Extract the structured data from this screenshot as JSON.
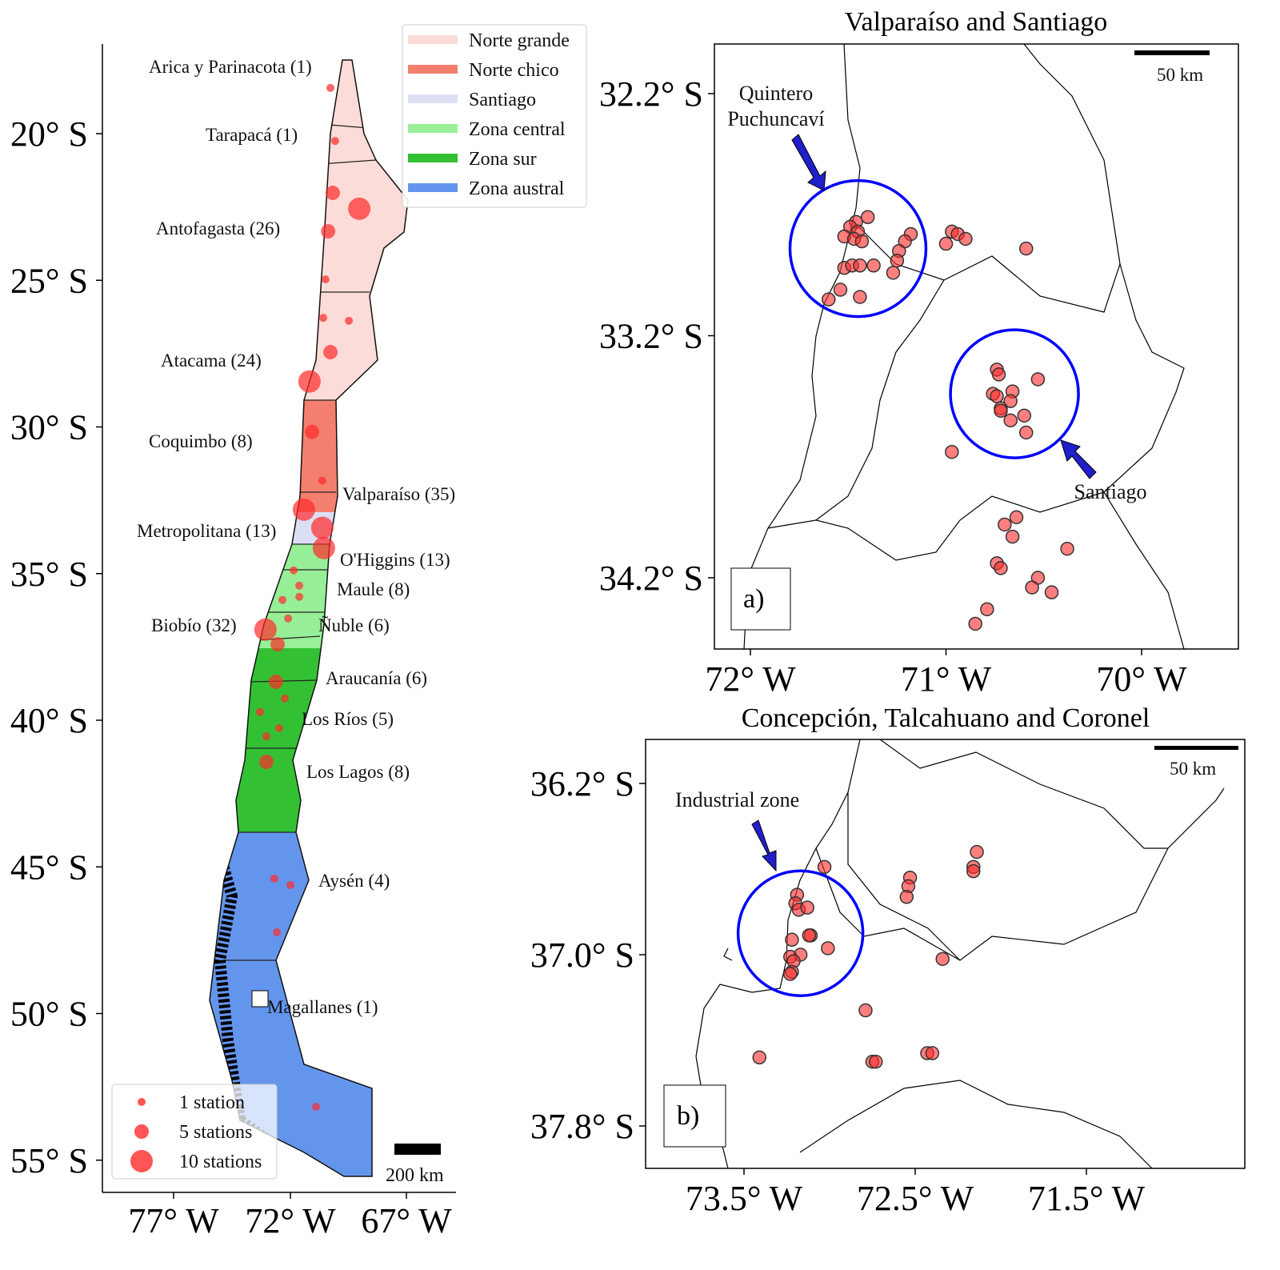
{
  "main_map": {
    "lat_ticks": [
      "20° S",
      "25° S",
      "30° S",
      "35° S",
      "40° S",
      "45° S",
      "50° S",
      "55° S"
    ],
    "lon_ticks": [
      "77° W",
      "72° W",
      "67° W"
    ],
    "scale_bar": "200 km",
    "regions": [
      "Arica y Parinacota (1)",
      "Tarapacá (1)",
      "Antofagasta (26)",
      "Atacama (24)",
      "Coquimbo (8)",
      "Valparaíso (35)",
      "Metropolitana (13)",
      "O'Higgins (13)",
      "Maule (8)",
      "Biobío (32)",
      "Ñuble (6)",
      "Araucanía (6)",
      "Los Ríos (5)",
      "Los Lagos (8)",
      "Aysén (4)",
      "Magallanes (1)"
    ],
    "zone_legend": [
      {
        "label": "Norte grande",
        "color": "#fcdcd8"
      },
      {
        "label": "Norte chico",
        "color": "#f3806e"
      },
      {
        "label": "Santiago",
        "color": "#dcdff4"
      },
      {
        "label": "Zona central",
        "color": "#97f097"
      },
      {
        "label": "Zona sur",
        "color": "#33c133"
      },
      {
        "label": "Zona austral",
        "color": "#6495ed"
      }
    ],
    "size_legend": [
      {
        "label": "1 station",
        "stations": 1
      },
      {
        "label": "5 stations",
        "stations": 5
      },
      {
        "label": "10 stations",
        "stations": 10
      }
    ],
    "stations": [
      {
        "lat": 18.44,
        "lon": 70.28,
        "n": 1
      },
      {
        "lat": 20.25,
        "lon": 70.08,
        "n": 1
      },
      {
        "lat": 22.02,
        "lon": 70.18,
        "n": 5
      },
      {
        "lat": 22.56,
        "lon": 69.04,
        "n": 10
      },
      {
        "lat": 23.33,
        "lon": 70.38,
        "n": 5
      },
      {
        "lat": 24.97,
        "lon": 70.49,
        "n": 1
      },
      {
        "lat": 26.28,
        "lon": 70.59,
        "n": 1
      },
      {
        "lat": 26.38,
        "lon": 69.49,
        "n": 1
      },
      {
        "lat": 27.45,
        "lon": 70.28,
        "n": 5
      },
      {
        "lat": 28.45,
        "lon": 71.18,
        "n": 10
      },
      {
        "lat": 30.17,
        "lon": 71.07,
        "n": 5
      },
      {
        "lat": 31.83,
        "lon": 70.63,
        "n": 1
      },
      {
        "lat": 32.82,
        "lon": 71.42,
        "n": 10
      },
      {
        "lat": 33.44,
        "lon": 70.63,
        "n": 10
      },
      {
        "lat": 34.13,
        "lon": 70.56,
        "n": 10
      },
      {
        "lat": 34.89,
        "lon": 71.86,
        "n": 1
      },
      {
        "lat": 35.41,
        "lon": 71.62,
        "n": 1
      },
      {
        "lat": 35.79,
        "lon": 71.62,
        "n": 1
      },
      {
        "lat": 35.9,
        "lon": 72.34,
        "n": 1
      },
      {
        "lat": 36.53,
        "lon": 72.1,
        "n": 1
      },
      {
        "lat": 36.91,
        "lon": 73.07,
        "n": 10
      },
      {
        "lat": 37.41,
        "lon": 72.55,
        "n": 5
      },
      {
        "lat": 38.69,
        "lon": 72.62,
        "n": 5
      },
      {
        "lat": 39.26,
        "lon": 72.24,
        "n": 1
      },
      {
        "lat": 39.72,
        "lon": 73.31,
        "n": 1
      },
      {
        "lat": 40.27,
        "lon": 72.48,
        "n": 1
      },
      {
        "lat": 40.55,
        "lon": 73.03,
        "n": 1
      },
      {
        "lat": 41.42,
        "lon": 73.03,
        "n": 5
      },
      {
        "lat": 45.4,
        "lon": 72.69,
        "n": 1
      },
      {
        "lat": 45.62,
        "lon": 72.0,
        "n": 1
      },
      {
        "lat": 47.23,
        "lon": 72.58,
        "n": 1
      },
      {
        "lat": 53.18,
        "lon": 70.9,
        "n": 1
      }
    ]
  },
  "inset_a": {
    "title": "Valparaíso and Santiago",
    "panel_label": "a)",
    "lat_ticks": [
      "32.2° S",
      "33.2° S",
      "34.2° S"
    ],
    "lon_ticks": [
      "72° W",
      "71° W",
      "70° W"
    ],
    "scale_bar": "50 km",
    "annotations": [
      "Quintero",
      "Puchuncaví",
      "Santiago"
    ],
    "highlight_circles": [
      {
        "lat": 32.84,
        "lon": 71.45
      },
      {
        "lat": 33.44,
        "lon": 70.65
      }
    ],
    "highlight_color": "#0000ff",
    "stations": [
      [
        32.71,
        71.4
      ],
      [
        32.73,
        71.46
      ],
      [
        32.75,
        71.49
      ],
      [
        32.77,
        71.45
      ],
      [
        32.79,
        71.52
      ],
      [
        32.8,
        71.47
      ],
      [
        32.81,
        71.43
      ],
      [
        32.78,
        71.18
      ],
      [
        32.81,
        71.21
      ],
      [
        32.85,
        71.24
      ],
      [
        32.89,
        71.25
      ],
      [
        32.77,
        70.97
      ],
      [
        32.78,
        70.94
      ],
      [
        32.8,
        70.9
      ],
      [
        32.82,
        71.0
      ],
      [
        32.84,
        70.59
      ],
      [
        32.92,
        71.52
      ],
      [
        32.91,
        71.48
      ],
      [
        32.91,
        71.44
      ],
      [
        32.91,
        71.37
      ],
      [
        32.94,
        71.27
      ],
      [
        33.01,
        71.54
      ],
      [
        33.05,
        71.6
      ],
      [
        33.04,
        71.44
      ],
      [
        33.34,
        70.74
      ],
      [
        33.36,
        70.73
      ],
      [
        33.38,
        70.53
      ],
      [
        33.43,
        70.66
      ],
      [
        33.44,
        70.76
      ],
      [
        33.45,
        70.74
      ],
      [
        33.47,
        70.67
      ],
      [
        33.5,
        70.72
      ],
      [
        33.51,
        70.72
      ],
      [
        33.53,
        70.6
      ],
      [
        33.55,
        70.67
      ],
      [
        33.6,
        70.59
      ],
      [
        33.68,
        70.97
      ],
      [
        33.95,
        70.64
      ],
      [
        33.98,
        70.7
      ],
      [
        34.03,
        70.66
      ],
      [
        34.08,
        70.38
      ],
      [
        34.14,
        70.74
      ],
      [
        34.16,
        70.72
      ],
      [
        34.2,
        70.53
      ],
      [
        34.24,
        70.56
      ],
      [
        34.26,
        70.46
      ],
      [
        34.33,
        70.79
      ],
      [
        34.39,
        70.85
      ]
    ]
  },
  "inset_b": {
    "title": "Concepción, Talcahuano and Coronel",
    "panel_label": "b)",
    "lat_ticks": [
      "36.2° S",
      "37.0° S",
      "37.8° S"
    ],
    "lon_ticks": [
      "73.5° W",
      "72.5° W",
      "71.5° W"
    ],
    "scale_bar": "50 km",
    "annotations": [
      "Industrial zone"
    ],
    "highlight_circles": [
      {
        "lat": 36.9,
        "lon": 73.17
      }
    ],
    "highlight_color": "#0000ff",
    "stations": [
      [
        36.59,
        73.03
      ],
      [
        36.52,
        72.14
      ],
      [
        36.59,
        72.16
      ],
      [
        36.61,
        72.16
      ],
      [
        36.64,
        72.53
      ],
      [
        36.68,
        72.54
      ],
      [
        36.73,
        72.55
      ],
      [
        36.72,
        73.19
      ],
      [
        36.76,
        73.2
      ],
      [
        36.79,
        73.18
      ],
      [
        36.78,
        73.13
      ],
      [
        36.91,
        73.11
      ],
      [
        36.91,
        73.12
      ],
      [
        36.93,
        73.22
      ],
      [
        36.97,
        73.01
      ],
      [
        37.0,
        73.17
      ],
      [
        37.01,
        73.23
      ],
      [
        37.03,
        73.21
      ],
      [
        37.08,
        73.22
      ],
      [
        37.09,
        73.23
      ],
      [
        37.02,
        72.34
      ],
      [
        37.26,
        72.79
      ],
      [
        37.48,
        73.41
      ],
      [
        37.46,
        72.43
      ],
      [
        37.46,
        72.4
      ],
      [
        37.5,
        72.75
      ],
      [
        37.5,
        72.73
      ]
    ]
  },
  "station_color": "#ff2a2a"
}
